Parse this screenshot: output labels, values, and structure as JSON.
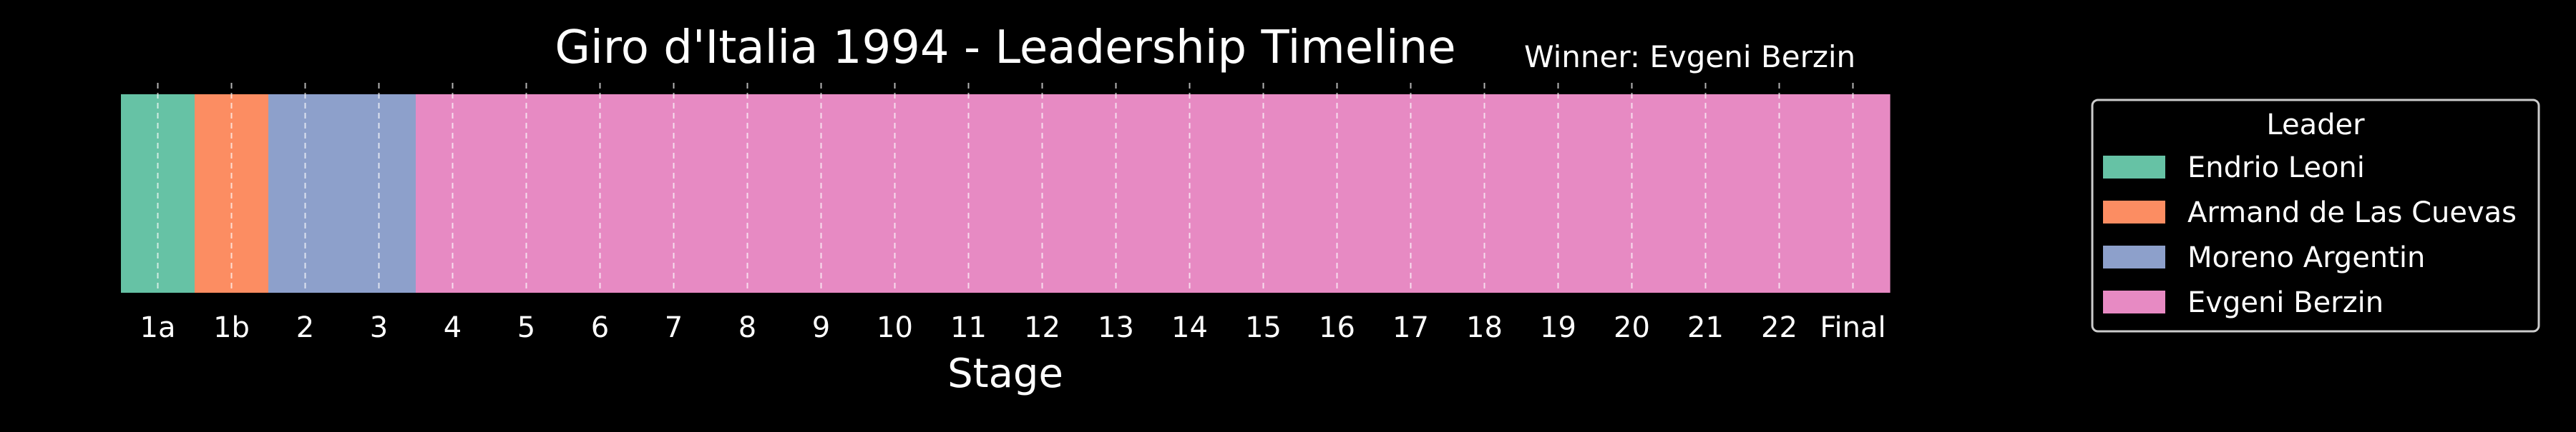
{
  "chart_data": {
    "type": "bar",
    "orientation": "horizontal-timeline",
    "title": "Giro d'Italia 1994 - Leadership Timeline",
    "subtitle": "Winner: Evgeni Berzin",
    "xlabel": "Stage",
    "ylabel": "",
    "categories": [
      "1a",
      "1b",
      "2",
      "3",
      "4",
      "5",
      "6",
      "7",
      "8",
      "9",
      "10",
      "11",
      "12",
      "13",
      "14",
      "15",
      "16",
      "17",
      "18",
      "19",
      "20",
      "21",
      "22",
      "Final"
    ],
    "leaders": [
      "Endrio Leoni",
      "Armand de Las Cuevas",
      "Moreno Argentin",
      "Moreno Argentin",
      "Evgeni Berzin",
      "Evgeni Berzin",
      "Evgeni Berzin",
      "Evgeni Berzin",
      "Evgeni Berzin",
      "Evgeni Berzin",
      "Evgeni Berzin",
      "Evgeni Berzin",
      "Evgeni Berzin",
      "Evgeni Berzin",
      "Evgeni Berzin",
      "Evgeni Berzin",
      "Evgeni Berzin",
      "Evgeni Berzin",
      "Evgeni Berzin",
      "Evgeni Berzin",
      "Evgeni Berzin",
      "Evgeni Berzin",
      "Evgeni Berzin",
      "Evgeni Berzin"
    ],
    "series": [
      {
        "name": "Endrio Leoni",
        "color": "#66c2a5"
      },
      {
        "name": "Armand de Las Cuevas",
        "color": "#fc8d62"
      },
      {
        "name": "Moreno Argentin",
        "color": "#8da0cb"
      },
      {
        "name": "Evgeni Berzin",
        "color": "#e78ac3"
      }
    ],
    "legend": {
      "title": "Leader",
      "placement": "right"
    },
    "grid": {
      "x": true,
      "style": "dashed"
    },
    "background": "#000000"
  }
}
